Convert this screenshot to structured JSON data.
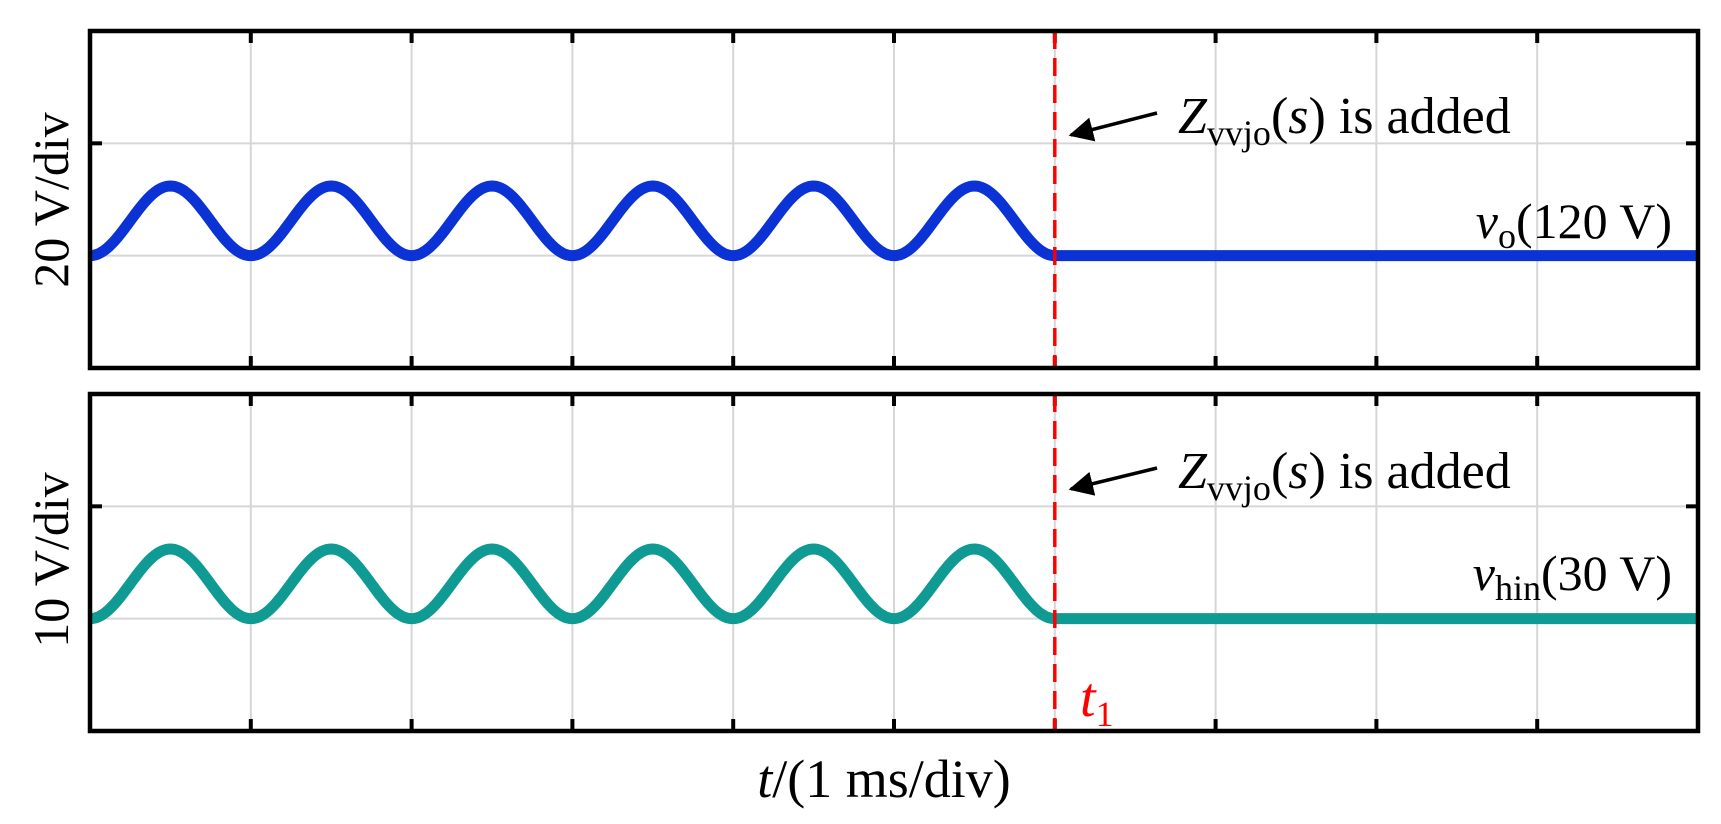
{
  "chart_data": [
    {
      "type": "line",
      "panel": "top",
      "ylabel": "20 V/div",
      "xlabel": "",
      "x_divisions": 10,
      "y_divisions": 3,
      "grid": true,
      "series": [
        {
          "name": "vo",
          "color": "#0a32d4",
          "baseline_div": 1,
          "ripple_cycles": 6,
          "ripple_amplitude_div": 0.62,
          "ripple_end_div": 6,
          "label": {
            "symbol": "v",
            "subscript": "o",
            "suffix": "(120 V)"
          }
        }
      ],
      "annotation": {
        "prefix": "Z",
        "subscript": "vvjo",
        "arg_open": "(",
        "arg": "s",
        "arg_close": ")",
        "suffix": " is added"
      },
      "event_x_div": 6
    },
    {
      "type": "line",
      "panel": "bottom",
      "ylabel": "10 V/div",
      "xlabel": "t/(1 ms/div)",
      "x_divisions": 10,
      "y_divisions": 3,
      "grid": true,
      "series": [
        {
          "name": "vhin",
          "color": "#0f9a94",
          "baseline_div": 1,
          "ripple_cycles": 6,
          "ripple_amplitude_div": 0.62,
          "ripple_end_div": 6,
          "label": {
            "symbol": "v",
            "subscript": "hin",
            "suffix": "(30 V)"
          }
        }
      ],
      "annotation": {
        "prefix": "Z",
        "subscript": "vvjo",
        "arg_open": "(",
        "arg": "s",
        "arg_close": ")",
        "suffix": " is added"
      },
      "event_x_div": 6,
      "event_marker": {
        "symbol": "t",
        "subscript": "1",
        "color": "#ff0000"
      }
    }
  ],
  "xlabel_parts": {
    "var": "t",
    "rest": "/(1 ms/div)"
  }
}
